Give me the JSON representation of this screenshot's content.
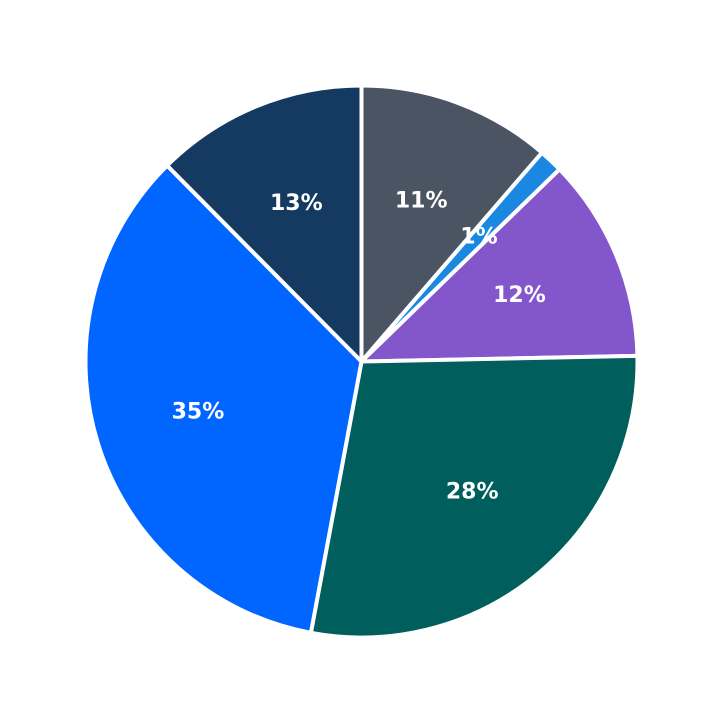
{
  "chart_data": {
    "type": "pie",
    "title": "",
    "legend": "none",
    "start_angle": "12 o'clock",
    "direction": "clockwise",
    "slices": [
      {
        "label": "11%",
        "value": 11.4,
        "color": "#4a5463"
      },
      {
        "label": "1%",
        "value": 1.4,
        "color": "#1a88e0"
      },
      {
        "label": "12%",
        "value": 12.0,
        "color": "#8456cc"
      },
      {
        "label": "28%",
        "value": 28.4,
        "color": "#005e5c"
      },
      {
        "label": "35%",
        "value": 34.8,
        "color": "#0066ff"
      },
      {
        "label": "13%",
        "value": 12.5,
        "color": "#143a62"
      }
    ]
  }
}
